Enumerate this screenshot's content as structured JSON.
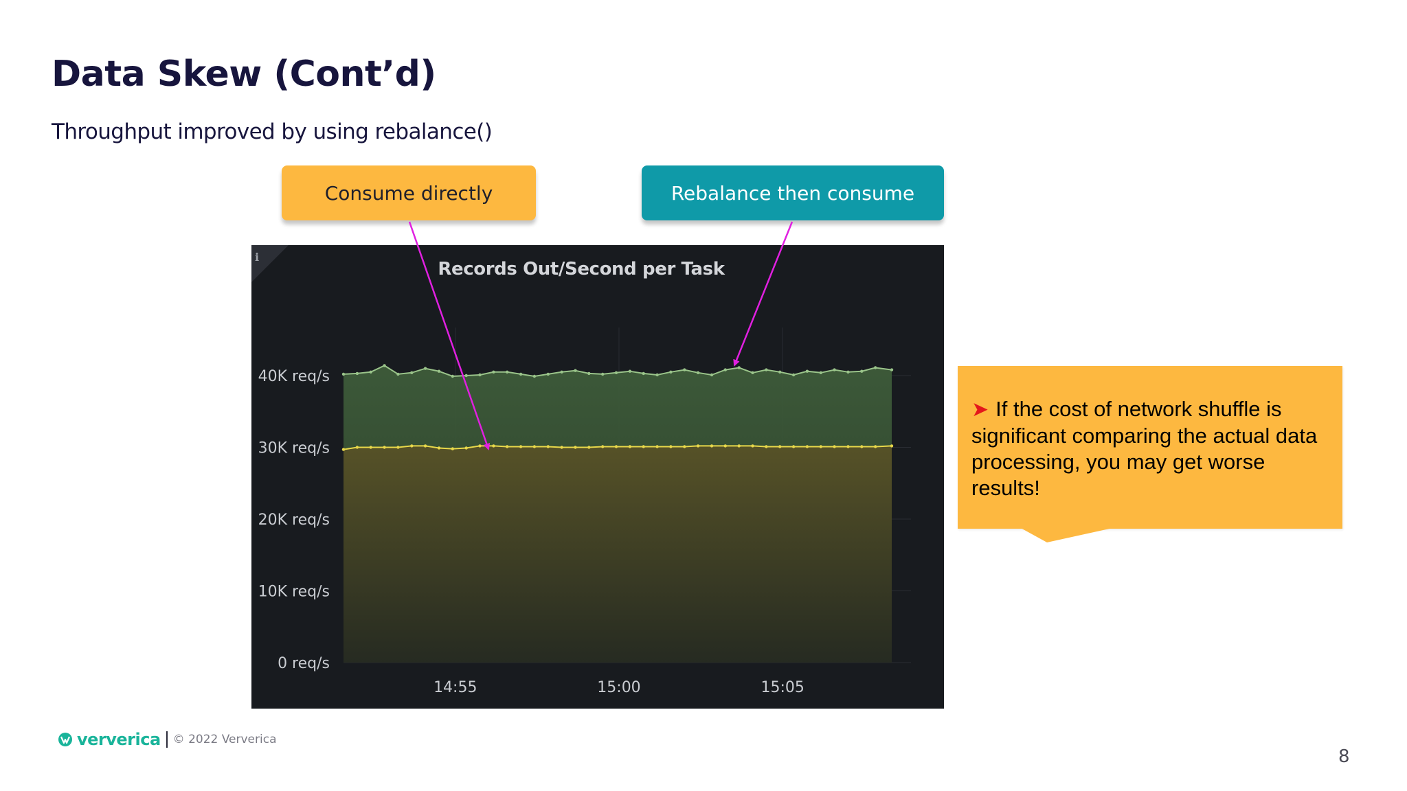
{
  "slide": {
    "title": "Data Skew (Cont’d)",
    "subtitle": "Throughput improved by using rebalance()",
    "page_number": "8"
  },
  "callouts": {
    "left": "Consume directly",
    "right": "Rebalance then consume"
  },
  "note": {
    "bullet_icon": "red-arrow-icon",
    "text": "If the cost of network shuffle is significant comparing the actual data processing, you may get worse results!"
  },
  "footer": {
    "brand": "ververica",
    "copyright": "© 2022 Ververica"
  },
  "colors": {
    "accent_orange": "#fdb840",
    "accent_teal": "#0f9aa8",
    "pointer_magenta": "#e020e0",
    "series_green": "#9ac48a",
    "series_yellow": "#e8d84a",
    "chart_background": "#181b1f"
  },
  "chart_data": {
    "type": "area",
    "title": "Records Out/Second per Task",
    "ylim": [
      0,
      40000
    ],
    "y_tick_values": [
      0,
      10000,
      20000,
      30000,
      40000
    ],
    "y_ticks": [
      "0 req/s",
      "10K req/s",
      "20K req/s",
      "30K req/s",
      "40K req/s"
    ],
    "x_range": [
      "14:51:35",
      "15:08:20"
    ],
    "x_tick_values": [
      "14:55",
      "15:00",
      "15:05"
    ],
    "x_ticks": [
      "14:55",
      "15:00",
      "15:05"
    ],
    "grid": true,
    "legend": "none",
    "x": [
      "14:51:35",
      "14:52:00",
      "14:52:25",
      "14:52:50",
      "14:53:15",
      "14:53:40",
      "14:54:05",
      "14:54:30",
      "14:54:55",
      "14:55:20",
      "14:55:45",
      "14:56:10",
      "14:56:35",
      "14:57:00",
      "14:57:25",
      "14:57:50",
      "14:58:15",
      "14:58:40",
      "14:59:05",
      "14:59:30",
      "14:59:55",
      "15:00:20",
      "15:00:45",
      "15:01:10",
      "15:01:35",
      "15:02:00",
      "15:02:25",
      "15:02:50",
      "15:03:15",
      "15:03:40",
      "15:04:05",
      "15:04:30",
      "15:04:55",
      "15:05:20",
      "15:05:45",
      "15:06:10",
      "15:06:35",
      "15:07:00",
      "15:07:25",
      "15:07:50",
      "15:08:20"
    ],
    "series": [
      {
        "values": [
          40200,
          40300,
          40500,
          41400,
          40200,
          40400,
          41000,
          40600,
          39900,
          40000,
          40100,
          40500,
          40500,
          40200,
          39900,
          40200,
          40500,
          40700,
          40300,
          40200,
          40400,
          40600,
          40300,
          40100,
          40500,
          40800,
          40400,
          40100,
          40800,
          41100,
          40400,
          40800,
          40500,
          40100,
          40600,
          40400,
          40800,
          40500,
          40600,
          41100,
          40800
        ]
      },
      {
        "values": [
          29700,
          30000,
          30000,
          30000,
          30000,
          30200,
          30200,
          29900,
          29800,
          29900,
          30200,
          30200,
          30100,
          30100,
          30100,
          30100,
          30000,
          30000,
          30000,
          30100,
          30100,
          30100,
          30100,
          30100,
          30100,
          30100,
          30200,
          30200,
          30200,
          30200,
          30200,
          30100,
          30100,
          30100,
          30100,
          30100,
          30100,
          30100,
          30100,
          30100,
          30200
        ]
      }
    ]
  }
}
